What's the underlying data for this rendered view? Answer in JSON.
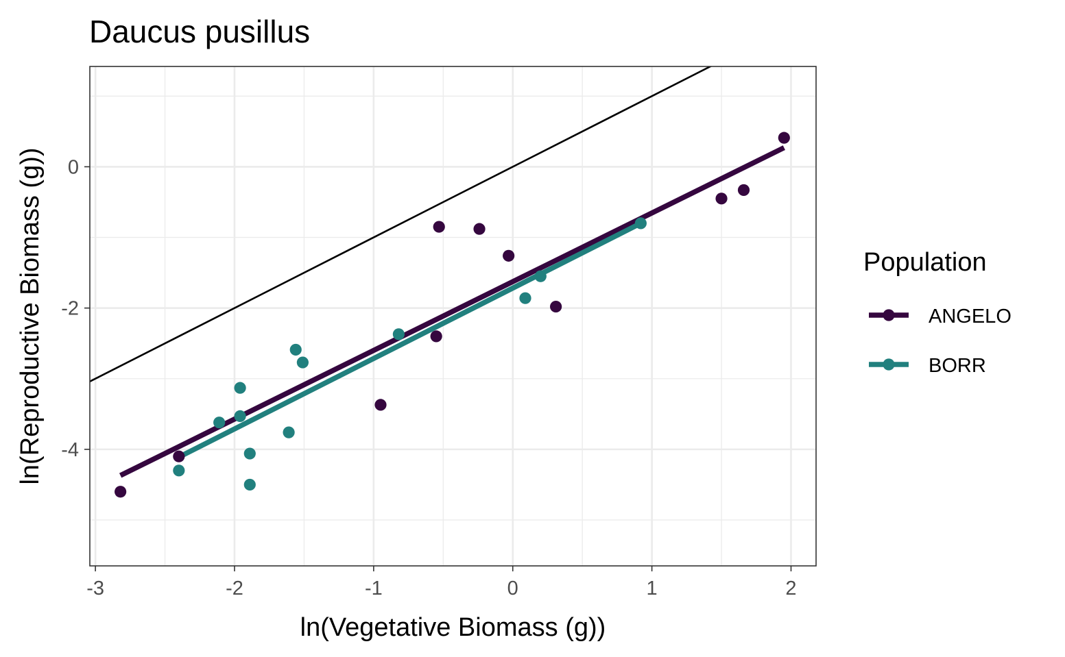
{
  "chart_data": {
    "type": "scatter",
    "title": "Daucus pusillus",
    "xlabel": "ln(Vegetative Biomass (g))",
    "ylabel": "ln(Reproductive Biomass (g))",
    "xlim": [
      -3.04,
      2.18
    ],
    "ylim": [
      -5.65,
      1.42
    ],
    "x_ticks": [
      -3,
      -2,
      -1,
      0,
      1,
      2
    ],
    "x_tick_labels": [
      "-3",
      "-2",
      "-1",
      "0",
      "1",
      "2"
    ],
    "y_ticks": [
      -4,
      -2,
      0
    ],
    "y_tick_labels": [
      "-4",
      "-2",
      "0"
    ],
    "grid": true,
    "legend": {
      "title": "Population",
      "position": "right"
    },
    "reference_line": {
      "slope": 1,
      "intercept": 0,
      "color": "#000000"
    },
    "series": [
      {
        "name": "ANGELO",
        "color": "#35073F",
        "points": [
          {
            "x": -2.82,
            "y": -4.6
          },
          {
            "x": -2.4,
            "y": -4.1
          },
          {
            "x": -0.95,
            "y": -3.37
          },
          {
            "x": -0.55,
            "y": -2.4
          },
          {
            "x": -0.53,
            "y": -0.85
          },
          {
            "x": -0.24,
            "y": -0.88
          },
          {
            "x": -0.03,
            "y": -1.26
          },
          {
            "x": 0.31,
            "y": -1.98
          },
          {
            "x": 1.5,
            "y": -0.45
          },
          {
            "x": 1.66,
            "y": -0.33
          },
          {
            "x": 1.95,
            "y": 0.41
          }
        ],
        "fit": {
          "x": [
            -2.82,
            1.95
          ],
          "y": [
            -4.37,
            0.27
          ]
        }
      },
      {
        "name": "BORR",
        "color": "#21807E",
        "points": [
          {
            "x": -2.4,
            "y": -4.3
          },
          {
            "x": -2.11,
            "y": -3.62
          },
          {
            "x": -1.96,
            "y": -3.13
          },
          {
            "x": -1.96,
            "y": -3.53
          },
          {
            "x": -1.89,
            "y": -4.06
          },
          {
            "x": -1.89,
            "y": -4.5
          },
          {
            "x": -1.61,
            "y": -3.76
          },
          {
            "x": -1.56,
            "y": -2.59
          },
          {
            "x": -1.51,
            "y": -2.77
          },
          {
            "x": -0.82,
            "y": -2.37
          },
          {
            "x": 0.09,
            "y": -1.86
          },
          {
            "x": 0.2,
            "y": -1.55
          },
          {
            "x": 0.92,
            "y": -0.8
          }
        ],
        "fit": {
          "x": [
            -2.4,
            0.92
          ],
          "y": [
            -4.11,
            -0.8
          ]
        }
      }
    ]
  }
}
